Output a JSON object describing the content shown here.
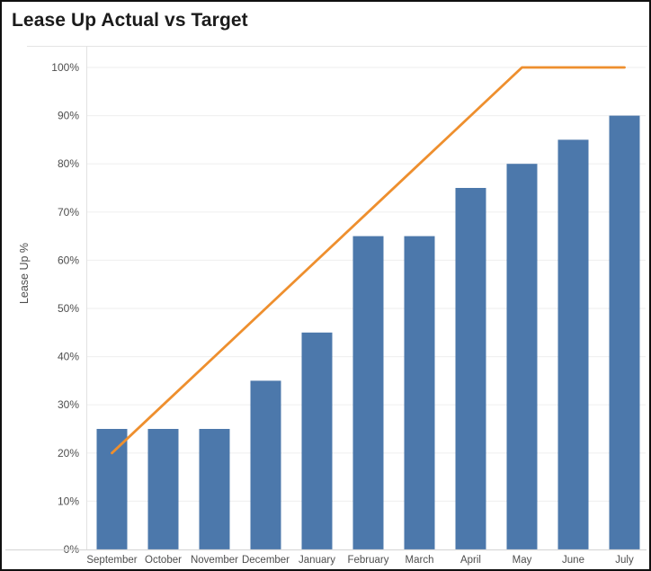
{
  "header": {
    "title": "Lease Up Actual vs Target"
  },
  "y_axis": {
    "label": "Lease Up %",
    "tick_labels": [
      "0%",
      "10%",
      "20%",
      "30%",
      "40%",
      "50%",
      "60%",
      "70%",
      "80%",
      "90%",
      "100%"
    ]
  },
  "chart_data": {
    "type": "bar",
    "title": "Lease Up Actual vs Target",
    "categories": [
      "September",
      "October",
      "November",
      "December",
      "January",
      "February",
      "March",
      "April",
      "May",
      "June",
      "July"
    ],
    "series": [
      {
        "name": "Actual",
        "mark": "bar",
        "color": "#4c78ab",
        "values": [
          25,
          25,
          25,
          35,
          45,
          65,
          65,
          75,
          80,
          85,
          90
        ]
      },
      {
        "name": "Target",
        "mark": "line",
        "color": "#ee8f2e",
        "values": [
          20,
          30,
          40,
          50,
          60,
          70,
          80,
          90,
          100,
          100,
          100
        ]
      }
    ],
    "xlabel": "",
    "ylabel": "Lease Up %",
    "ylim": [
      0,
      100
    ],
    "ytick_step": 10,
    "ytick_suffix": "%",
    "grid": true,
    "legend_position": "none"
  },
  "style_colors": {
    "bar": "#4c78ab",
    "target_line": "#ee8f2e",
    "gridline": "#f1f1f1",
    "axis_line": "#d9d9d9",
    "axis_line_vertical": "#e2e2e2",
    "tick_text": "#4e4e4e",
    "title_text": "#1b1b1b",
    "border": "#101010"
  }
}
